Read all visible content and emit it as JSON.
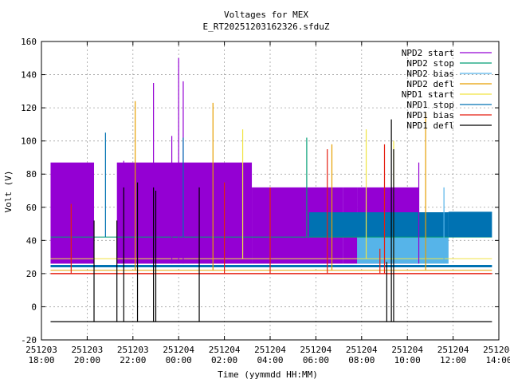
{
  "chart_data": {
    "type": "line",
    "title": "Voltages for MEX",
    "subtitle": "E_RT20251203162326.sfduZ",
    "xlabel": "Time (yymmdd HH:MM)",
    "ylabel": "Volt (V)",
    "ylim": [
      -20,
      160
    ],
    "yticks": [
      -20,
      0,
      20,
      40,
      60,
      80,
      100,
      120,
      140,
      160
    ],
    "xlim_hours": [
      18,
      38
    ],
    "xticks": [
      {
        "date": "251203",
        "time": "18:00"
      },
      {
        "date": "251203",
        "time": "20:00"
      },
      {
        "date": "251203",
        "time": "22:00"
      },
      {
        "date": "251204",
        "time": "00:00"
      },
      {
        "date": "251204",
        "time": "02:00"
      },
      {
        "date": "251204",
        "time": "04:00"
      },
      {
        "date": "251204",
        "time": "06:00"
      },
      {
        "date": "251204",
        "time": "08:00"
      },
      {
        "date": "251204",
        "time": "10:00"
      },
      {
        "date": "251204",
        "time": "12:00"
      },
      {
        "date": "251204",
        "time": "14:00"
      }
    ],
    "grid": true,
    "legend_position": "top-right",
    "series": [
      {
        "name": "NPD2 start",
        "color": "#9400d3"
      },
      {
        "name": "NPD2 stop",
        "color": "#009e73"
      },
      {
        "name": "NPD2 bias",
        "color": "#56b4e9"
      },
      {
        "name": "NPD2 defl",
        "color": "#e69f00"
      },
      {
        "name": "NPD1 start",
        "color": "#f0e442"
      },
      {
        "name": "NPD1 stop",
        "color": "#0072b2"
      },
      {
        "name": "NPD1 bias",
        "color": "#e51e10"
      },
      {
        "name": "NPD1 defl",
        "color": "#000000"
      }
    ],
    "baselines": {
      "npd1_bias": 20,
      "npd2_defl": 22,
      "npd1_start": 29,
      "npd_main": 24.5,
      "npd1_defl": -9,
      "npd1_stop_upper": 57,
      "npd2_stop": 42
    },
    "blocks": [
      {
        "series": "NPD2 start",
        "x0": 18.4,
        "x1": 20.3,
        "low": 26,
        "high": 87
      },
      {
        "series": "NPD2 start",
        "x0": 21.3,
        "x1": 27.2,
        "low": 26,
        "high": 87
      },
      {
        "series": "NPD2 start",
        "x0": 27.2,
        "x1": 31.2,
        "low": 26,
        "high": 72
      },
      {
        "series": "NPD2 start",
        "x0": 31.2,
        "x1": 31.8,
        "low": 26,
        "high": 72
      },
      {
        "series": "NPD2 start",
        "x0": 31.8,
        "x1": 34.5,
        "low": 26,
        "high": 72
      },
      {
        "series": "NPD2 bias",
        "x0": 31.8,
        "x1": 35.8,
        "low": 26,
        "high": 57
      },
      {
        "series": "NPD1 stop",
        "x0": 29.7,
        "x1": 35.8,
        "low": 42,
        "high": 57
      }
    ],
    "spikes": [
      {
        "series": "NPD2 start",
        "x": 21.6,
        "low": 26,
        "high": 88
      },
      {
        "series": "NPD2 start",
        "x": 22.9,
        "low": 26,
        "high": 135
      },
      {
        "series": "NPD2 start",
        "x": 24.0,
        "low": 26,
        "high": 150
      },
      {
        "series": "NPD2 start",
        "x": 24.2,
        "low": 26,
        "high": 136
      },
      {
        "series": "NPD2 start",
        "x": 23.7,
        "low": 26,
        "high": 103
      },
      {
        "series": "NPD2 start",
        "x": 34.5,
        "low": 26,
        "high": 87
      },
      {
        "series": "NPD1 stop",
        "x": 20.8,
        "low": 42,
        "high": 105
      },
      {
        "series": "NPD1 stop",
        "x": 24.2,
        "low": 42,
        "high": 102
      },
      {
        "series": "NPD2 defl",
        "x": 22.1,
        "low": 22,
        "high": 124
      },
      {
        "series": "NPD2 defl",
        "x": 25.5,
        "low": 22,
        "high": 123
      },
      {
        "series": "NPD2 defl",
        "x": 34.8,
        "low": 22,
        "high": 117
      },
      {
        "series": "NPD1 start",
        "x": 26.8,
        "low": 29,
        "high": 107
      },
      {
        "series": "NPD1 start",
        "x": 32.2,
        "low": 29,
        "high": 107
      },
      {
        "series": "NPD1 start",
        "x": 33.4,
        "low": 29,
        "high": 100
      },
      {
        "series": "NPD2 bias",
        "x": 35.6,
        "low": 26,
        "high": 72
      },
      {
        "series": "NPD2 stop",
        "x": 29.6,
        "low": 42,
        "high": 102
      },
      {
        "series": "NPD2 defl",
        "x": 30.7,
        "low": 22,
        "high": 98
      },
      {
        "series": "NPD1 bias",
        "x": 19.3,
        "low": 20,
        "high": 62
      },
      {
        "series": "NPD1 bias",
        "x": 26.0,
        "low": 20,
        "high": 75
      },
      {
        "series": "NPD1 bias",
        "x": 28.0,
        "low": 20,
        "high": 72
      },
      {
        "series": "NPD1 bias",
        "x": 30.5,
        "low": 20,
        "high": 95
      },
      {
        "series": "NPD1 bias",
        "x": 32.8,
        "low": 20,
        "high": 35
      },
      {
        "series": "NPD1 bias",
        "x": 33.0,
        "low": 20,
        "high": 98
      },
      {
        "series": "NPD1 defl",
        "x": 20.3,
        "low": -9,
        "high": 52
      },
      {
        "series": "NPD1 defl",
        "x": 21.3,
        "low": -9,
        "high": 52
      },
      {
        "series": "NPD1 defl",
        "x": 21.6,
        "low": -9,
        "high": 72
      },
      {
        "series": "NPD1 defl",
        "x": 22.2,
        "low": -9,
        "high": 75
      },
      {
        "series": "NPD1 defl",
        "x": 22.9,
        "low": -9,
        "high": 72
      },
      {
        "series": "NPD1 defl",
        "x": 23.0,
        "low": -9,
        "high": 70
      },
      {
        "series": "NPD1 defl",
        "x": 24.9,
        "low": -9,
        "high": 72
      },
      {
        "series": "NPD1 defl",
        "x": 33.1,
        "low": -9,
        "high": 27
      },
      {
        "series": "NPD1 defl",
        "x": 33.3,
        "low": -9,
        "high": 113
      },
      {
        "series": "NPD1 defl",
        "x": 33.4,
        "low": -9,
        "high": 95
      }
    ]
  }
}
